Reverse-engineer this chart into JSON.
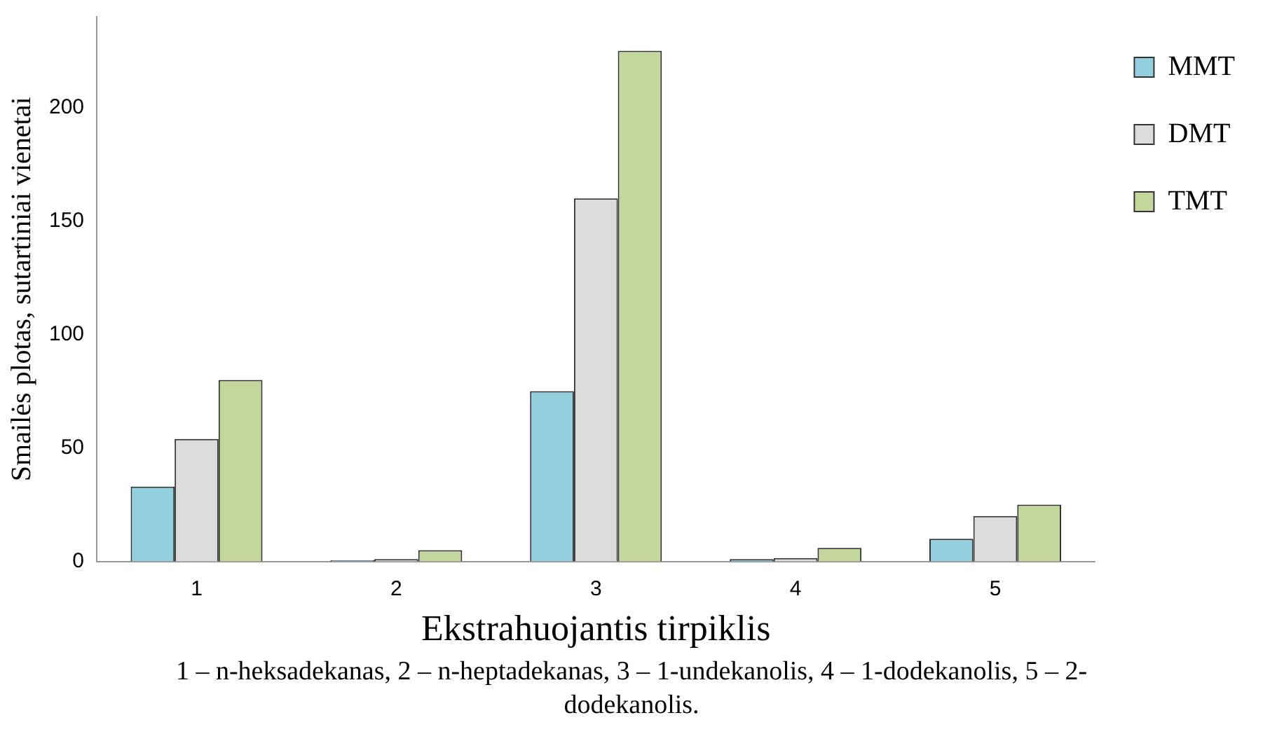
{
  "chart_data": {
    "type": "bar",
    "xlabel": "Ekstrahuojantis tirpiklis",
    "ylabel": "Smailės plotas, sutartiniai vienetai",
    "categories": [
      "1",
      "2",
      "3",
      "4",
      "5"
    ],
    "series": [
      {
        "name": "MMT",
        "color": "#92d0e0",
        "values": [
          33,
          0.5,
          75,
          1,
          10
        ]
      },
      {
        "name": "DMT",
        "color": "#dcdcdc",
        "values": [
          54,
          1,
          160,
          1.5,
          20
        ]
      },
      {
        "name": "TMT",
        "color": "#c3d69b",
        "values": [
          80,
          5,
          225,
          6,
          25
        ]
      }
    ],
    "ylim": [
      0,
      240
    ],
    "yticks": [
      0,
      50,
      100,
      150,
      200
    ],
    "grid": false,
    "legend": "right",
    "annotations": [
      "1 – n-heksadekanas, 2 – n-heptadekanas, 3 – 1-undekanolis, 4 – 1-dodekanolis, 5 – 2-dodekanolis."
    ]
  }
}
